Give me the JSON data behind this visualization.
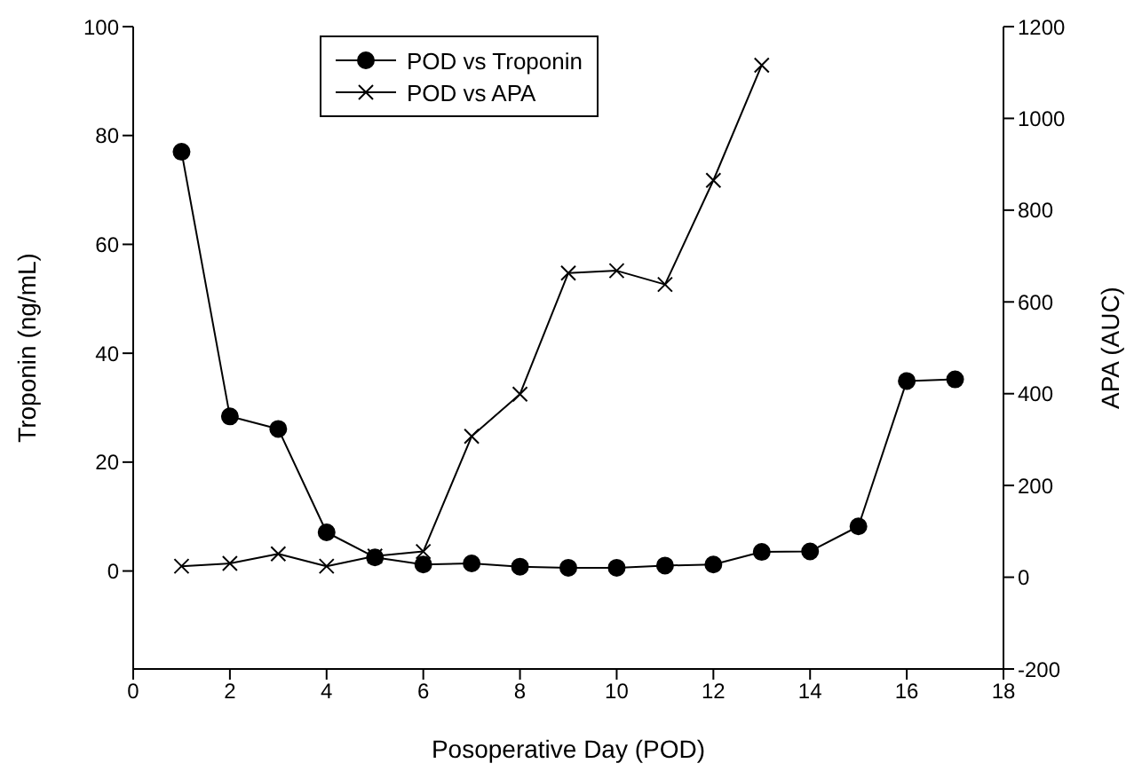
{
  "chart_data": {
    "type": "line",
    "xlabel": "Posoperative Day (POD)",
    "ylabel": "Troponin (ng/mL)",
    "y2label": "APA (AUC)",
    "series": [
      {
        "name": "POD vs Troponin",
        "color": "#000000",
        "marker": "circle",
        "x": [
          1,
          2,
          3,
          4,
          5,
          6,
          7,
          8,
          9,
          10,
          11,
          12,
          13,
          14,
          15,
          16,
          17
        ],
        "values": [
          77,
          28.4,
          26.1,
          7.1,
          2.5,
          1.2,
          1.4,
          0.8,
          0.6,
          0.6,
          1.0,
          1.2,
          3.5,
          3.6,
          8.2,
          34.9,
          35.2
        ]
      },
      {
        "name": "POD vs APA",
        "color": "#000000",
        "marker": "cross",
        "axis": "y2",
        "x": [
          1,
          2,
          3,
          4,
          5,
          6,
          7,
          8,
          9,
          10,
          11,
          12,
          13
        ],
        "values": [
          24,
          30,
          51,
          24,
          46,
          56,
          307,
          399,
          663,
          668,
          638,
          865,
          1116
        ]
      }
    ],
    "xlim": [
      0,
      18
    ],
    "xticks": [
      0,
      2,
      4,
      6,
      8,
      10,
      12,
      14,
      16,
      18
    ],
    "ylim": [
      -18,
      100
    ],
    "yticks": [
      0,
      20,
      40,
      60,
      80,
      100
    ],
    "y2lim": [
      -200,
      1200
    ],
    "y2ticks": [
      -200,
      0,
      200,
      400,
      600,
      800,
      1000,
      1200
    ],
    "grid": false,
    "legend": "top left",
    "line_style": "solid"
  }
}
